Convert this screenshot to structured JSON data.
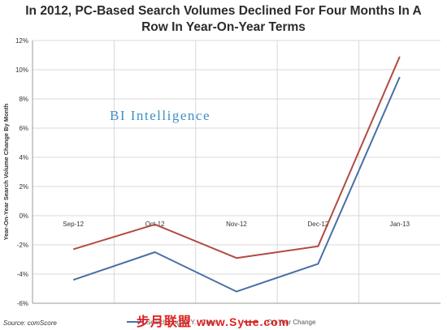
{
  "title_line1": "In 2012, PC-Based Search Volumes Declined For Four Months In A",
  "title_line2": "Row In Year-On-Year Terms",
  "brand": "BI Intelligence",
  "source": "Source: comScore",
  "legend": {
    "first_label": "Search Engine Y... Chan...",
    "second_label": "...On-Year Change"
  },
  "watermark": {
    "text": "步月联盟",
    "site": "www.Syue.com"
  },
  "colors": {
    "series1": "#4a6ea8",
    "series2": "#b24a44",
    "brand": "#3d8fc6"
  },
  "chart_data": {
    "type": "line",
    "categories": [
      "Sep-12",
      "Oct-12",
      "Nov-12",
      "Dec-12",
      "Jan-13"
    ],
    "series": [
      {
        "name": "Search Engine Y... Chan...",
        "values": [
          -4.4,
          -2.5,
          -5.2,
          -3.3,
          9.5
        ],
        "color": "#4a6ea8"
      },
      {
        "name": "...On-Year Change",
        "values": [
          -2.3,
          -0.6,
          -2.9,
          -2.1,
          10.9
        ],
        "color": "#b24a44"
      }
    ],
    "ylabel": "Year-On-Year Search Volume Change By Month",
    "ylim": [
      -6,
      12
    ],
    "yticks": [
      "-6%",
      "-4%",
      "-2%",
      "0%",
      "2%",
      "4%",
      "6%",
      "8%",
      "10%",
      "12%"
    ],
    "grid": true
  }
}
